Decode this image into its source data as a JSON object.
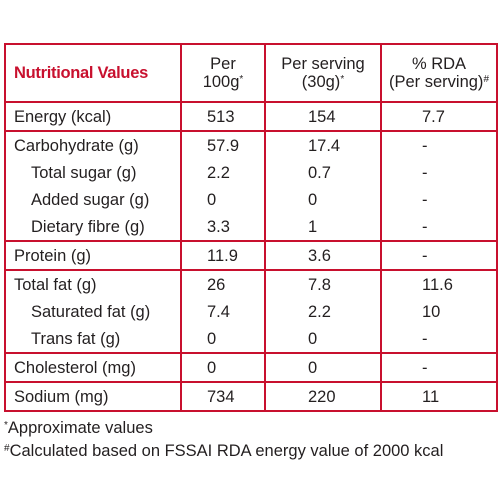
{
  "table": {
    "header": {
      "col0": "Nutritional Values",
      "col1_line1": "Per",
      "col1_line2": "100g",
      "col1_mark": "*",
      "col2_line1": "Per serving",
      "col2_line2": "(30g)",
      "col2_mark": "*",
      "col3_line1": "% RDA",
      "col3_line2": "(Per serving)",
      "col3_mark": "#"
    },
    "rows": [
      {
        "label": "Energy (kcal)",
        "per100g": "513",
        "perServing": "154",
        "rda": "7.7"
      },
      {
        "label": "Carbohydrate (g)",
        "per100g": "57.9",
        "perServing": "17.4",
        "rda": "-"
      },
      {
        "label": "Total sugar (g)",
        "per100g": "2.2",
        "perServing": "0.7",
        "rda": "-"
      },
      {
        "label": "Added sugar (g)",
        "per100g": "0",
        "perServing": "0",
        "rda": "-"
      },
      {
        "label": "Dietary fibre (g)",
        "per100g": "3.3",
        "perServing": "1",
        "rda": "-"
      },
      {
        "label": "Protein (g)",
        "per100g": "11.9",
        "perServing": "3.6",
        "rda": "-"
      },
      {
        "label": "Total fat (g)",
        "per100g": "26",
        "perServing": "7.8",
        "rda": "11.6"
      },
      {
        "label": "Saturated fat (g)",
        "per100g": "7.4",
        "perServing": "2.2",
        "rda": "10"
      },
      {
        "label": "Trans fat (g)",
        "per100g": "0",
        "perServing": "0",
        "rda": "-"
      },
      {
        "label": "Cholesterol (mg)",
        "per100g": "0",
        "perServing": "0",
        "rda": "-"
      },
      {
        "label": "Sodium (mg)",
        "per100g": "734",
        "perServing": "220",
        "rda": "11"
      }
    ]
  },
  "footnotes": {
    "approx_mark": "*",
    "approx_text": "Approximate values",
    "calc_mark": "#",
    "calc_text": "Calculated based on FSSAI RDA energy value of 2000 kcal"
  },
  "colors": {
    "accent": "#c8102e",
    "text": "#231f20"
  }
}
